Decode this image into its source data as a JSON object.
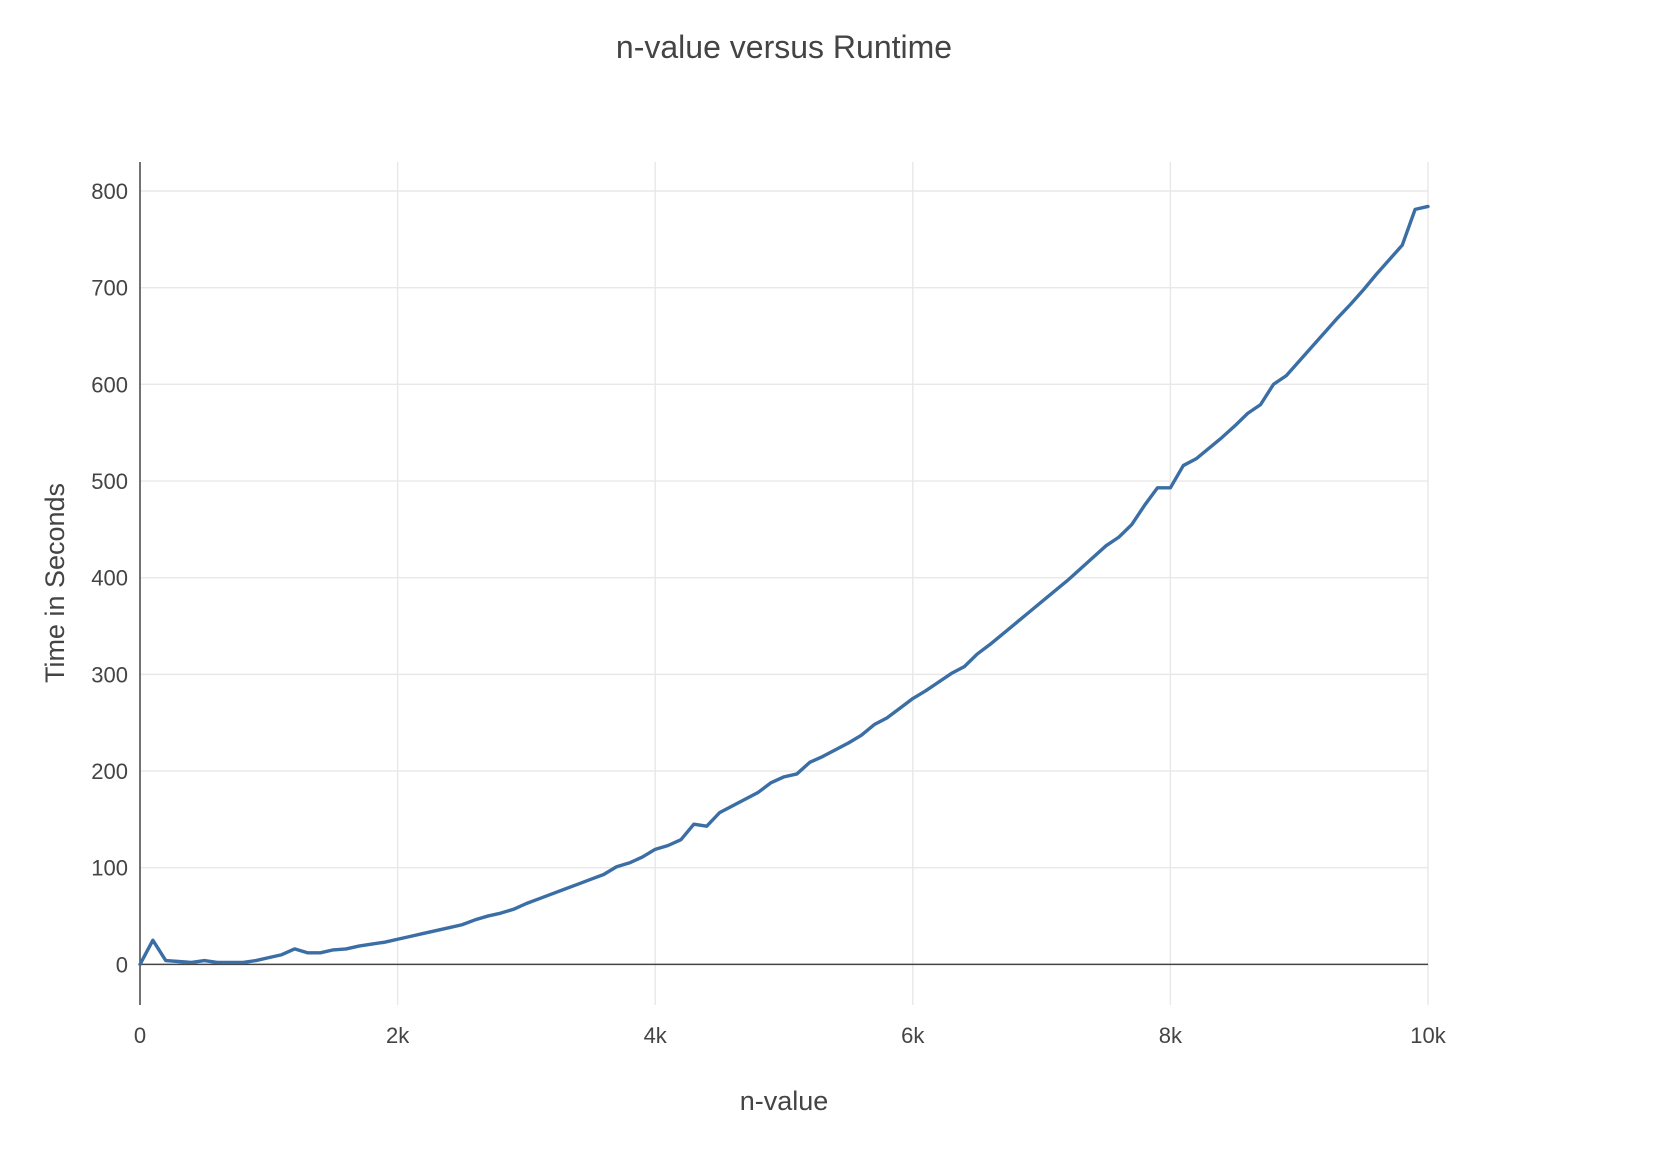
{
  "chart_data": {
    "type": "line",
    "title": "n-value versus Runtime",
    "xlabel": "n-value",
    "ylabel": "Time in Seconds",
    "xlim": [
      0,
      10000
    ],
    "ylim": [
      -42,
      830
    ],
    "x_ticks": [
      0,
      2000,
      4000,
      6000,
      8000,
      10000
    ],
    "x_tick_labels": [
      "0",
      "2k",
      "4k",
      "6k",
      "8k",
      "10k"
    ],
    "y_ticks": [
      0,
      100,
      200,
      300,
      400,
      500,
      600,
      700,
      800
    ],
    "y_tick_labels": [
      "0",
      "100",
      "200",
      "300",
      "400",
      "500",
      "600",
      "700",
      "800"
    ],
    "grid": true,
    "legend": "none",
    "series": [
      {
        "color": "#3a6ea5",
        "x": [
          0,
          100,
          200,
          300,
          400,
          500,
          600,
          700,
          800,
          900,
          1000,
          1100,
          1200,
          1300,
          1400,
          1500,
          1600,
          1700,
          1800,
          1900,
          2000,
          2100,
          2200,
          2300,
          2400,
          2500,
          2600,
          2700,
          2800,
          2900,
          3000,
          3100,
          3200,
          3300,
          3400,
          3500,
          3600,
          3700,
          3800,
          3900,
          4000,
          4100,
          4200,
          4300,
          4400,
          4500,
          4600,
          4700,
          4800,
          4900,
          5000,
          5100,
          5200,
          5300,
          5400,
          5500,
          5600,
          5700,
          5800,
          5900,
          6000,
          6100,
          6200,
          6300,
          6400,
          6500,
          6600,
          6700,
          6800,
          6900,
          7000,
          7100,
          7200,
          7300,
          7400,
          7500,
          7600,
          7700,
          7800,
          7900,
          8000,
          8100,
          8200,
          8300,
          8400,
          8500,
          8600,
          8700,
          8800,
          8900,
          9000,
          9100,
          9200,
          9300,
          9400,
          9500,
          9600,
          9700,
          9800,
          9900,
          10000
        ],
        "y": [
          0,
          25,
          4,
          3,
          2,
          4,
          2,
          2,
          2,
          4,
          7,
          10,
          16,
          12,
          12,
          15,
          16,
          19,
          21,
          23,
          26,
          29,
          32,
          35,
          38,
          41,
          46,
          50,
          53,
          57,
          63,
          68,
          73,
          78,
          83,
          88,
          93,
          101,
          105,
          111,
          119,
          123,
          129,
          145,
          143,
          157,
          164,
          171,
          178,
          188,
          194,
          197,
          209,
          215,
          222,
          229,
          237,
          248,
          255,
          265,
          275,
          283,
          292,
          301,
          308,
          321,
          331,
          342,
          353,
          364,
          375,
          386,
          397,
          409,
          421,
          433,
          442,
          455,
          475,
          493,
          493,
          516,
          523,
          534,
          545,
          557,
          570,
          579,
          600,
          609,
          624,
          639,
          654,
          669,
          683,
          698,
          714,
          729,
          744,
          781,
          784
        ]
      }
    ]
  }
}
